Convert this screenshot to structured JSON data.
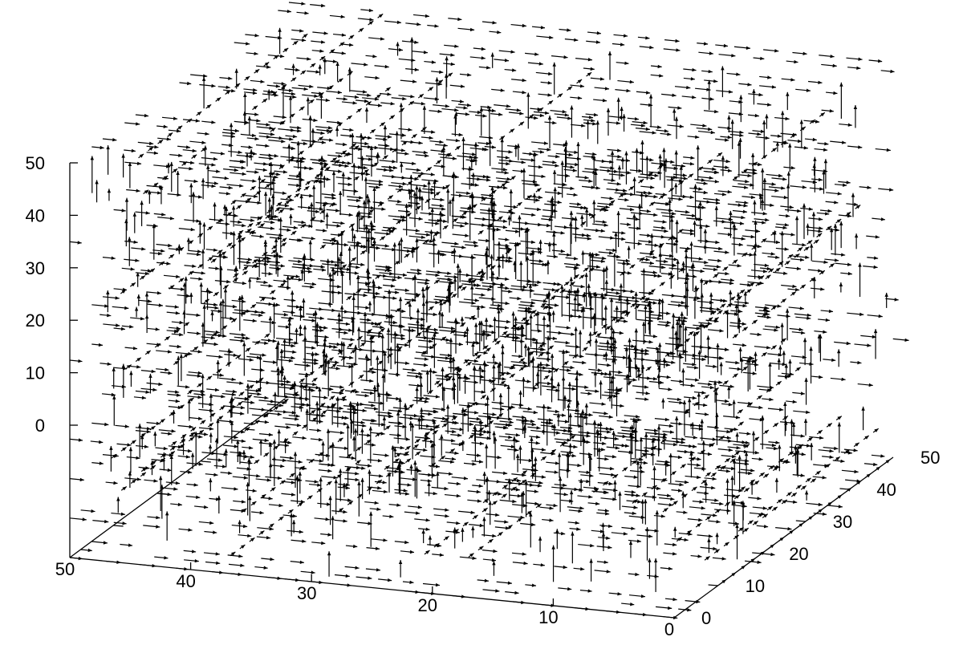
{
  "chart_data": {
    "type": "vector-field-3d",
    "title": "",
    "xlabel": "",
    "ylabel": "",
    "zlabel": "",
    "xlim": [
      0,
      50
    ],
    "ylim": [
      0,
      50
    ],
    "zlim": [
      0,
      50
    ],
    "x_ticks": [
      "0",
      "10",
      "20",
      "30",
      "40",
      "50"
    ],
    "y_ticks": [
      "0",
      "10",
      "20",
      "30",
      "40",
      "50"
    ],
    "z_ticks": [
      "0",
      "10",
      "20",
      "30",
      "40",
      "50"
    ],
    "grid": false,
    "legend": "none",
    "color": "#000000",
    "field_description": "dense 3D arrow field of axis-aligned unit vectors (pointing -x or +z) filling the region 0-50 in x, y and z"
  }
}
